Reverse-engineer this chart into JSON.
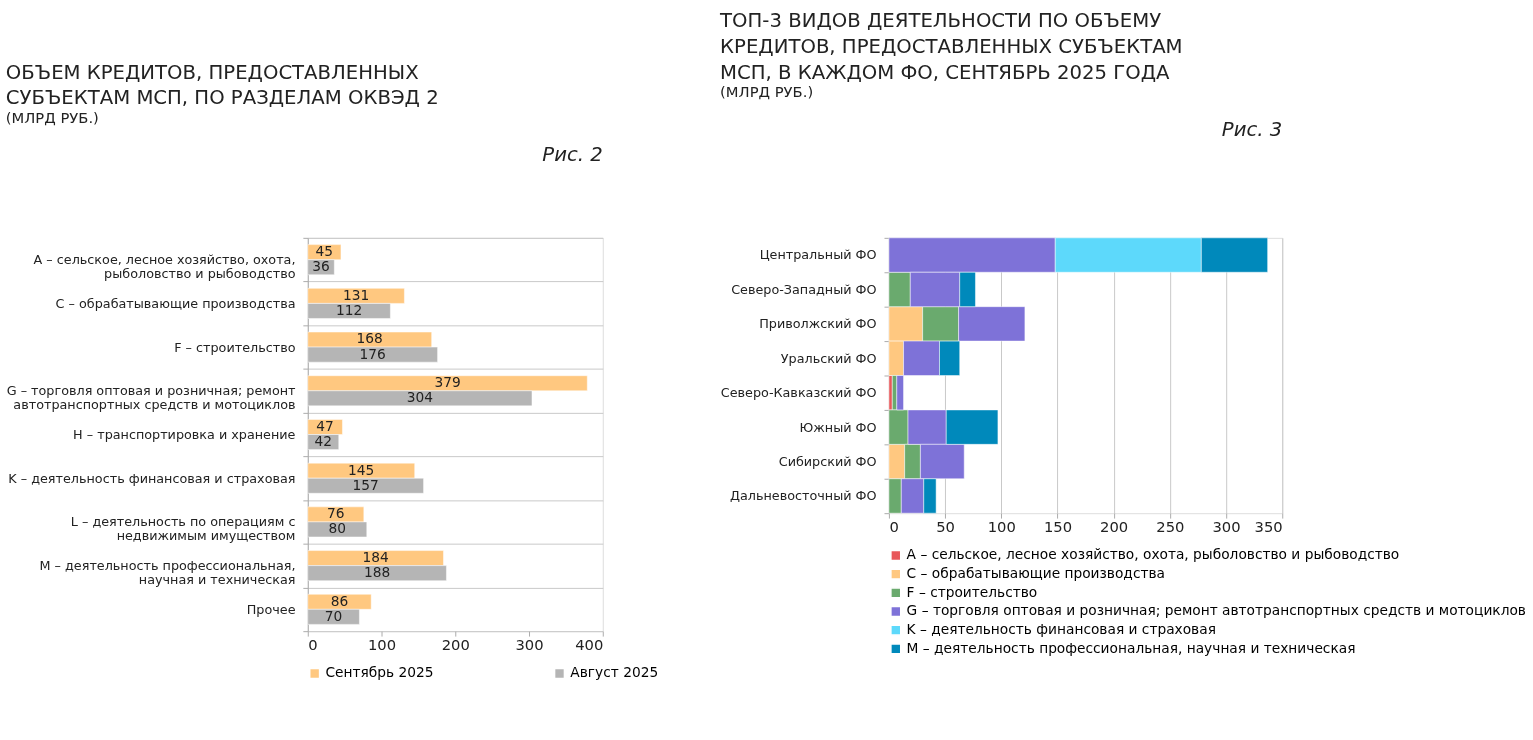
{
  "chart_data": [
    {
      "type": "bar",
      "orientation": "horizontal",
      "title": "ОБЪЕМ КРЕДИТОВ, ПРЕДОСТАВЛЕННЫХ СУБЪЕКТАМ МСП, ПО РАЗДЕЛАМ ОКВЭД 2",
      "subtitle": "(МЛРД РУБ.)",
      "annotations": [
        "Рис. 2"
      ],
      "categories": [
        "A – сельское, лесное хозяйство, охота, рыболовство и рыбоводство",
        "C – обрабатывающие производства",
        "F – строительство",
        "G – торговля оптовая и розничная; ремонт автотранспортных средств и мотоциклов",
        "H – транспортировка и хранение",
        "K – деятельность финансовая и страховая",
        "L – деятельность по операциям с недвижимым имуществом",
        "M – деятельность профессиональная, научная и техническая",
        "Прочее"
      ],
      "series": [
        {
          "name": "Сентябрь 2025",
          "color": "#ffc880",
          "values": [
            45,
            131,
            168,
            379,
            47,
            145,
            76,
            184,
            86
          ]
        },
        {
          "name": "Август 2025",
          "color": "#b5b5b5",
          "values": [
            36,
            112,
            176,
            304,
            42,
            157,
            80,
            188,
            70
          ]
        }
      ],
      "xlim": [
        0,
        400
      ],
      "xticks": [
        0,
        100,
        200,
        300,
        400
      ],
      "grid": "y",
      "legend": "bottom",
      "data_labels": true
    },
    {
      "type": "bar",
      "orientation": "horizontal",
      "stacked": true,
      "title": "ТОП-3 ВИДОВ ДЕЯТЕЛЬНОСТИ ПО ОБЪЕМУ КРЕДИТОВ, ПРЕДОСТАВЛЕННЫХ СУБЪЕКТАМ МСП, В КАЖДОМ ФО, СЕНТЯБРЬ 2025 ГОДА",
      "subtitle": "(МЛРД РУБ.)",
      "annotations": [
        "Рис. 3"
      ],
      "categories": [
        "Центральный ФО",
        "Северо-Западный ФО",
        "Приволжский ФО",
        "Уральский ФО",
        "Северо-Кавказский ФО",
        "Южный ФО",
        "Сибирский ФО",
        "Дальневосточный ФО"
      ],
      "series": [
        {
          "name": "A – сельское, лесное хозяйство, охота, рыболовство и рыбоводство",
          "color": "#e8575a",
          "values": [
            null,
            null,
            null,
            null,
            3,
            null,
            null,
            null
          ]
        },
        {
          "name": "C – обрабатывающие производства",
          "color": "#ffc880",
          "values": [
            null,
            null,
            30,
            13,
            null,
            null,
            14,
            null
          ]
        },
        {
          "name": "F – строительство",
          "color": "#6aaa6e",
          "values": [
            null,
            19,
            32,
            null,
            4,
            17,
            14,
            11
          ]
        },
        {
          "name": "G – торговля оптовая и розничная; ремонт автотранспортных средств и мотоциклов",
          "color": "#7e72d8",
          "values": [
            148,
            44,
            59,
            32,
            6,
            34,
            39,
            20
          ]
        },
        {
          "name": "K – деятельность финансовая и страховая",
          "color": "#5dd9fb",
          "values": [
            130,
            null,
            null,
            null,
            null,
            null,
            null,
            null
          ]
        },
        {
          "name": "M – деятельность профессиональная, научная и техническая",
          "color": "#0089bb",
          "values": [
            59,
            14,
            null,
            18,
            null,
            46,
            null,
            11
          ]
        }
      ],
      "xlim": [
        0,
        350
      ],
      "xticks": [
        0,
        50,
        100,
        150,
        200,
        250,
        300,
        350
      ],
      "grid": "x",
      "legend": "bottom"
    }
  ]
}
